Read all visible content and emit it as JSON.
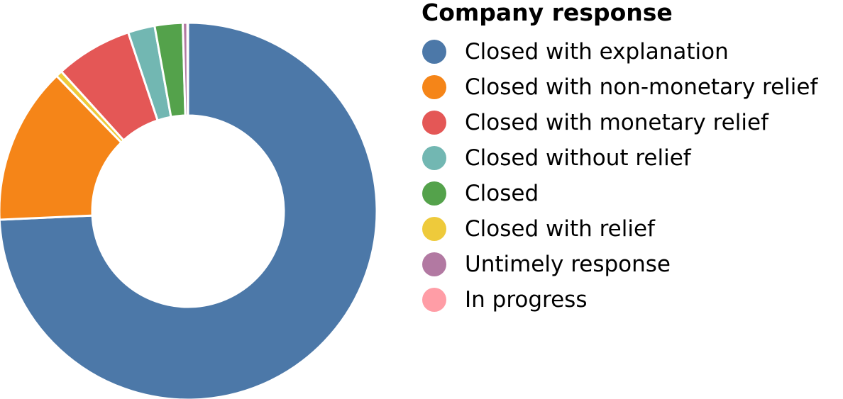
{
  "chart_data": {
    "type": "pie",
    "donut": true,
    "title": "",
    "legend_title": "Company response",
    "legend_placement": "right",
    "categories": [
      "Closed with explanation",
      "Closed with non-monetary relief",
      "Closed with monetary relief",
      "Closed without relief",
      "Closed",
      "Closed with relief",
      "Untimely response",
      "In progress"
    ],
    "colors": [
      "#4c78a8",
      "#f58518",
      "#e45756",
      "#72b7b2",
      "#54a24b",
      "#eeca3b",
      "#b279a2",
      "#ff9da6"
    ],
    "values": [
      74.5,
      13.5,
      6.6,
      2.3,
      2.4,
      0.55,
      0.4,
      0.05
    ],
    "slice_order": [
      "Closed with explanation",
      "Closed with non-monetary relief",
      "Closed with relief",
      "Closed with monetary relief",
      "Closed without relief",
      "Closed",
      "Untimely response",
      "In progress"
    ]
  }
}
